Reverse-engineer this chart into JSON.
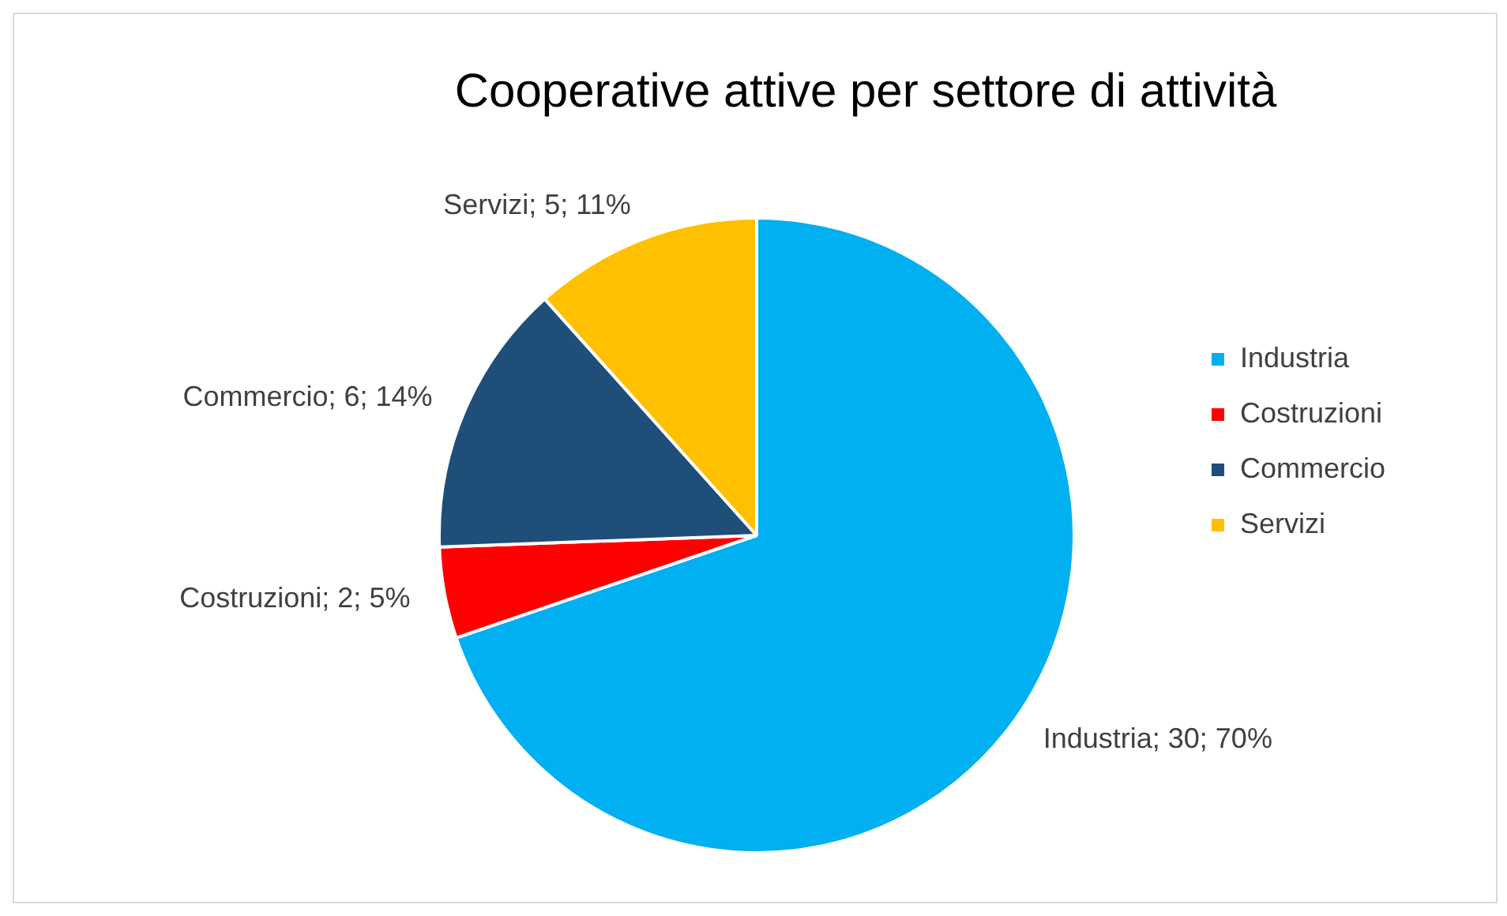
{
  "chart_data": {
    "type": "pie",
    "title": "Cooperative attive per settore di attività",
    "categories": [
      "Industria",
      "Costruzioni",
      "Commercio",
      "Servizi"
    ],
    "values": [
      30,
      2,
      6,
      5
    ],
    "colors": [
      "#00b0f0",
      "#ff0000",
      "#1f4e79",
      "#ffc000"
    ],
    "value_labels": [
      "Industria; 30; 70%",
      "Costruzioni; 2; 5%",
      "Commercio; 6; 14%",
      "Servizi; 5; 11%"
    ],
    "legend": "right"
  }
}
